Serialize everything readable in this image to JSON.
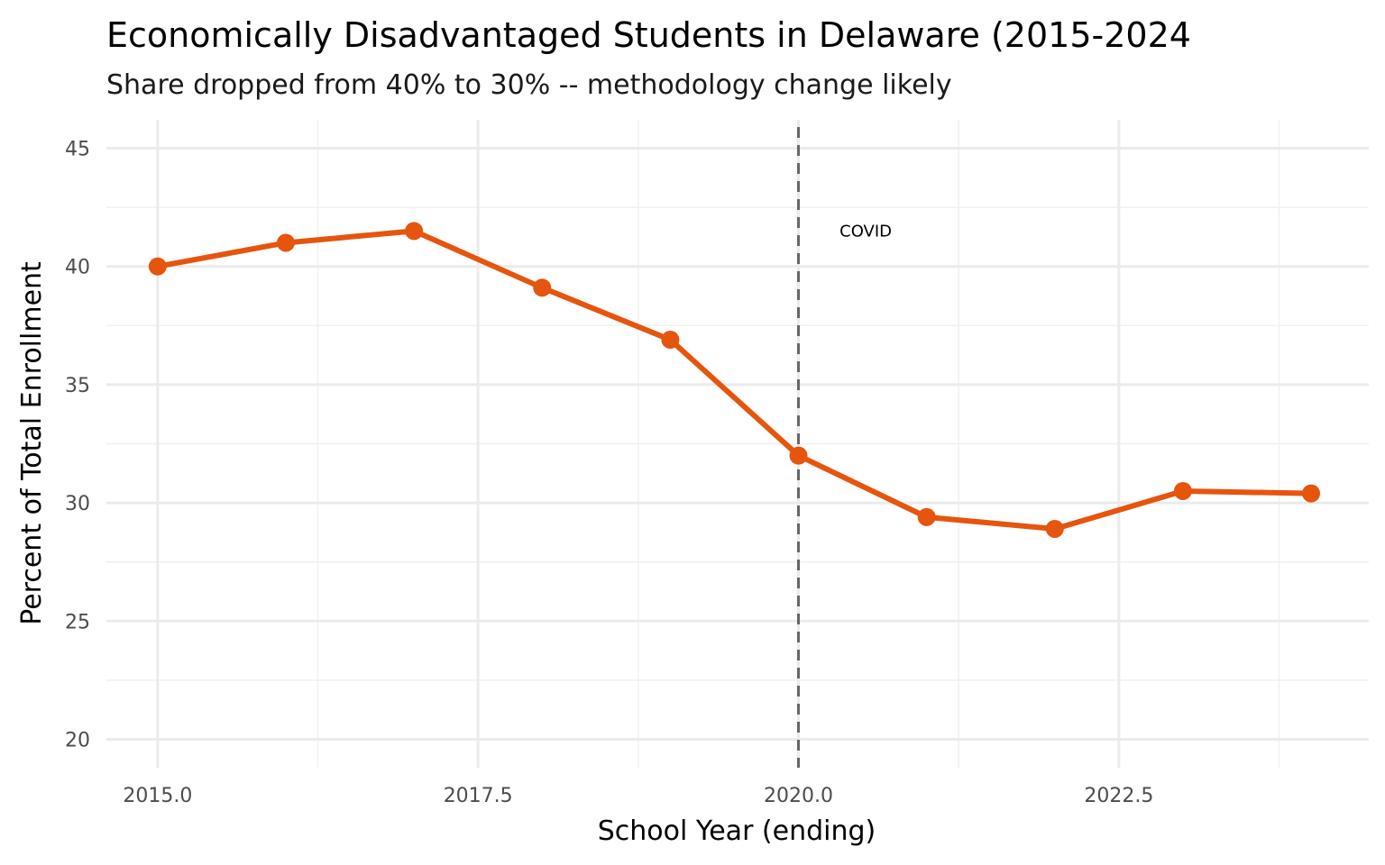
{
  "chart_data": {
    "type": "line",
    "title": "Economically Disadvantaged Students in Delaware (2015-2024",
    "subtitle": "Share dropped from 40% to 30% -- methodology change likely",
    "xlabel": "School Year (ending)",
    "ylabel": "Percent of Total Enrollment",
    "x": [
      2015,
      2016,
      2017,
      2018,
      2019,
      2020,
      2021,
      2022,
      2023,
      2024
    ],
    "series": [
      {
        "values": [
          40.0,
          41.0,
          41.5,
          39.1,
          36.9,
          32.0,
          29.4,
          28.9,
          30.5,
          30.4
        ],
        "color": "#E6550D"
      }
    ],
    "xlim": [
      2014.6,
      2024.45
    ],
    "ylim": [
      18.8,
      46.2
    ],
    "x_ticks": [
      "2015.0",
      "2017.5",
      "2020.0",
      "2022.5"
    ],
    "x_tick_values": [
      2015,
      2017.5,
      2020,
      2022.5
    ],
    "y_ticks": [
      "20",
      "25",
      "30",
      "35",
      "40",
      "45"
    ],
    "y_tick_values": [
      20,
      25,
      30,
      35,
      40,
      45
    ],
    "grid": true,
    "annotations": [
      {
        "type": "vline",
        "x": 2020,
        "style": "dashed",
        "color": "#666666"
      },
      {
        "type": "text",
        "x": 2020.3,
        "y": 41.5,
        "text": "COVID"
      }
    ],
    "background": "#ffffff"
  }
}
